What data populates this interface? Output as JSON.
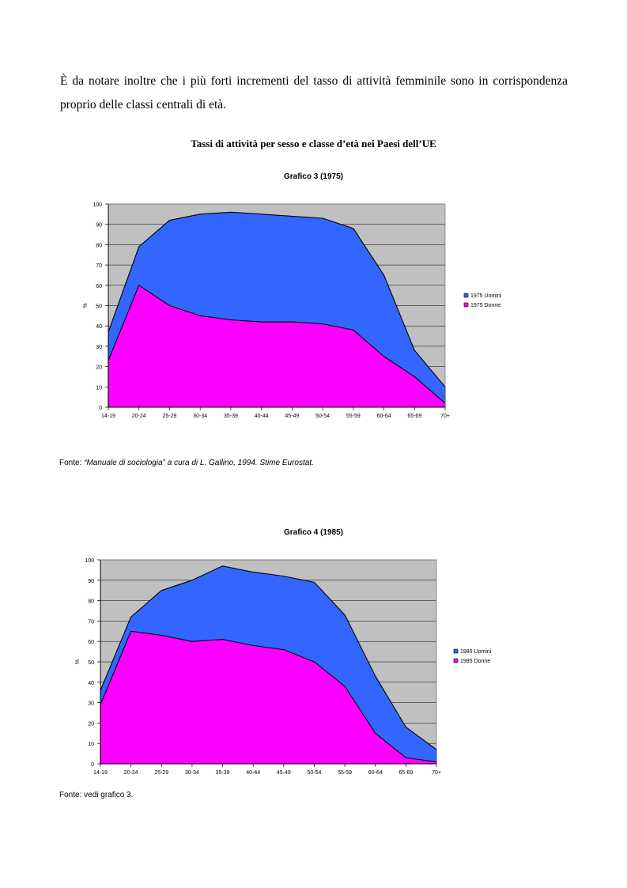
{
  "paragraph": "È da notare inoltre che i più forti incrementi del tasso di attività femminile sono in corrispondenza proprio delle classi centrali di età.",
  "main_title": "Tassi di attività per sesso e classe d’età nei Paesi dell’UE",
  "source1": {
    "prefix": "Fonte: ",
    "italic": "“Manuale di sociologia” a cura di L. Gallino, 1994. Stime Eurostat."
  },
  "source2": "Fonte: vedi grafico 3.",
  "colors": {
    "men": "#3366ff",
    "women": "#ff00ff",
    "plot_bg": "#c0c0c0",
    "grid": "#000000"
  },
  "chart_data": [
    {
      "type": "area",
      "title": "Grafico 3 (1975)",
      "ylabel": "%",
      "ylim": [
        0,
        100
      ],
      "yticks": [
        0,
        10,
        20,
        30,
        40,
        50,
        60,
        70,
        80,
        90,
        100
      ],
      "categories": [
        "14-19",
        "20-24",
        "25-29",
        "30-34",
        "35-39",
        "40-44",
        "45-49",
        "50-54",
        "55-59",
        "60-64",
        "65-69",
        "70+"
      ],
      "series": [
        {
          "name": "1975 Uomini",
          "values": [
            37,
            79,
            92,
            95,
            96,
            95,
            94,
            93,
            88,
            65,
            28,
            10
          ]
        },
        {
          "name": "1975 Donne",
          "values": [
            23,
            60,
            50,
            45,
            43,
            42,
            42,
            41,
            38,
            25,
            15,
            2
          ]
        }
      ],
      "legend": "right",
      "grid": true
    },
    {
      "type": "area",
      "title": "Grafico 4 (1985)",
      "ylabel": "%",
      "ylim": [
        0,
        100
      ],
      "yticks": [
        0,
        10,
        20,
        30,
        40,
        50,
        60,
        70,
        80,
        90,
        100
      ],
      "categories": [
        "14-19",
        "20-24",
        "25-29",
        "30-34",
        "35-39",
        "40-44",
        "45-49",
        "50-54",
        "55-59",
        "60-64",
        "65-69",
        "70+"
      ],
      "series": [
        {
          "name": "1985 Uomini",
          "values": [
            36,
            72,
            85,
            90,
            97,
            94,
            92,
            89,
            73,
            43,
            18,
            7
          ]
        },
        {
          "name": "1985 Donne",
          "values": [
            29,
            65,
            63,
            60,
            61,
            58,
            56,
            50,
            38,
            15,
            3,
            1
          ]
        }
      ],
      "legend": "right",
      "grid": true
    }
  ]
}
